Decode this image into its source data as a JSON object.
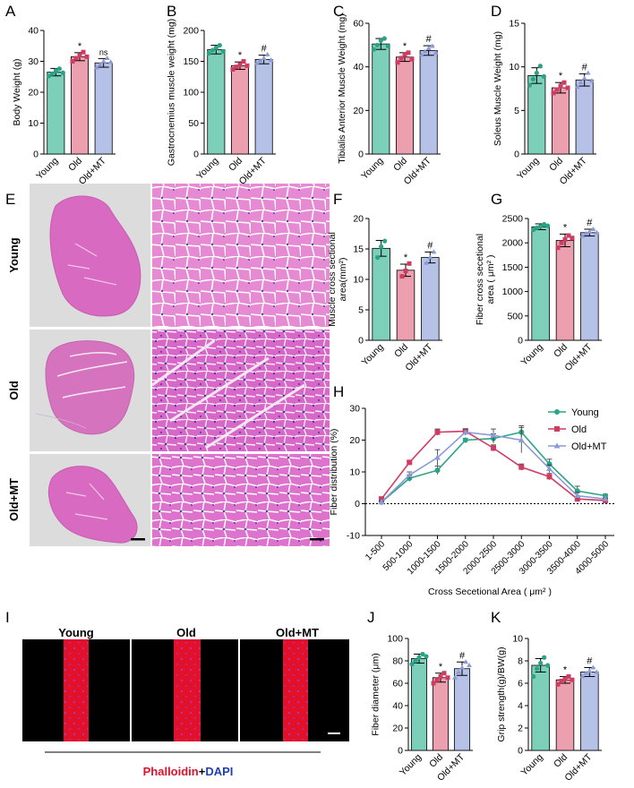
{
  "panels": {
    "A": "A",
    "B": "B",
    "C": "C",
    "D": "D",
    "E": "E",
    "F": "F",
    "G": "G",
    "H": "H",
    "I": "I",
    "J": "J",
    "K": "K"
  },
  "colors": {
    "young_fill": "#7ccfb9",
    "young_dot": "#2aa386",
    "old_fill": "#ec9fae",
    "old_dot": "#cf3b62",
    "mt_fill": "#b6c1e7",
    "mt_dot": "#8c9bd4",
    "he_stain": "#d869bd",
    "fiber_red": "#e3102c"
  },
  "groups": [
    "Young",
    "Old",
    "Old+MT"
  ],
  "histology": {
    "row_labels": [
      "Young",
      "Old",
      "Old+MT"
    ]
  },
  "fluorescence": {
    "labels": [
      "Young",
      "Old",
      "Old+MT"
    ],
    "stain_phalloidin": "Phalloidin",
    "stain_plus": "+",
    "stain_dapi": "DAPI"
  },
  "chart_data": [
    {
      "id": "A",
      "type": "bar",
      "ylabel": "Body Weight (g)",
      "categories": [
        "Young",
        "Old",
        "Old+MT"
      ],
      "values": [
        26.5,
        31.5,
        29.5
      ],
      "errors": [
        1.2,
        1.3,
        1.4
      ],
      "ylim": [
        0,
        40
      ],
      "yticks": [
        0,
        10,
        20,
        30,
        40
      ],
      "annotations": [
        "",
        "*",
        "ns"
      ],
      "points": [
        [
          25.2,
          26,
          27,
          27.6,
          26.3
        ],
        [
          30,
          31,
          32,
          33,
          31.5
        ],
        [
          28,
          29,
          30,
          31,
          29.8
        ]
      ]
    },
    {
      "id": "B",
      "type": "bar",
      "ylabel": "Gastrocnemius muscle weight (mg)",
      "categories": [
        "Young",
        "Old",
        "Old+MT"
      ],
      "values": [
        169,
        143,
        153
      ],
      "errors": [
        7,
        6,
        7
      ],
      "ylim": [
        0,
        200
      ],
      "yticks": [
        0,
        50,
        100,
        150,
        200
      ],
      "annotations": [
        "",
        "*",
        "#"
      ],
      "points": [
        [
          163,
          168,
          172,
          176,
          166
        ],
        [
          137,
          141,
          145,
          150,
          143
        ],
        [
          147,
          151,
          155,
          161,
          152
        ]
      ]
    },
    {
      "id": "C",
      "type": "bar",
      "ylabel": "Tibialis Anterior Muscle Weight (mg)",
      "categories": [
        "Young",
        "Old",
        "Old+MT"
      ],
      "values": [
        50.5,
        44.5,
        47.5
      ],
      "errors": [
        2.5,
        2.0,
        2.2
      ],
      "ylim": [
        0,
        60
      ],
      "yticks": [
        0,
        20,
        40,
        60
      ],
      "annotations": [
        "",
        "*",
        "#"
      ],
      "points": [
        [
          48,
          50,
          52,
          53,
          49.5
        ],
        [
          42,
          44,
          45.5,
          46.5,
          43.5
        ],
        [
          45.5,
          47,
          48.5,
          49.5,
          46.5
        ]
      ]
    },
    {
      "id": "D",
      "type": "bar",
      "ylabel": "Soleus Muscle Weight (mg)",
      "categories": [
        "Young",
        "Old",
        "Old+MT"
      ],
      "values": [
        9.0,
        7.6,
        8.5
      ],
      "errors": [
        0.9,
        0.6,
        0.7
      ],
      "ylim": [
        0,
        15
      ],
      "yticks": [
        0,
        5,
        10,
        15
      ],
      "annotations": [
        "",
        "*",
        "#"
      ],
      "points": [
        [
          7.9,
          8.6,
          9.3,
          10.1,
          8.9
        ],
        [
          7.0,
          7.4,
          7.8,
          8.2,
          7.6
        ],
        [
          7.7,
          8.2,
          8.7,
          9.3,
          8.4
        ]
      ]
    },
    {
      "id": "F",
      "type": "bar",
      "ylabel": "Muscle cross sectional area(mm²)",
      "ylabel_line1": "Muscle cross sectional",
      "ylabel_line2": "area(mm²)",
      "categories": [
        "Young",
        "Old",
        "Old+MT"
      ],
      "values": [
        15.1,
        11.5,
        13.6
      ],
      "errors": [
        1.3,
        1.0,
        0.9
      ],
      "ylim": [
        0,
        20
      ],
      "yticks": [
        0,
        5,
        10,
        15,
        20
      ],
      "annotations": [
        "",
        "*",
        "#"
      ],
      "points": [
        [
          13.6,
          15.4,
          16.3
        ],
        [
          10.5,
          11.4,
          12.6
        ],
        [
          12.7,
          13.6,
          14.5
        ]
      ]
    },
    {
      "id": "G",
      "type": "bar",
      "ylabel": "Fiber cross secetional area ( μm² )",
      "ylabel_line1": "Fiber cross secetional",
      "ylabel_line2": "area ( μm² )",
      "categories": [
        "Young",
        "Old",
        "Old+MT"
      ],
      "values": [
        2330,
        2050,
        2210
      ],
      "errors": [
        60,
        130,
        70
      ],
      "ylim": [
        0,
        2500
      ],
      "yticks": [
        0,
        500,
        1000,
        1500,
        2000,
        2500
      ],
      "annotations": [
        "",
        "*",
        "#"
      ],
      "points": [
        [
          2270,
          2310,
          2340,
          2380,
          2350
        ],
        [
          1900,
          2000,
          2070,
          2150,
          2100
        ],
        [
          2140,
          2190,
          2230,
          2280,
          2210
        ]
      ]
    },
    {
      "id": "H",
      "type": "line",
      "ylabel": "Fiber distribution    (%)",
      "xlabel": "Cross Secetional Area ( μm² )",
      "categories": [
        "1-500",
        "500-1000",
        "1000-1500",
        "1500-2000",
        "2000-2500",
        "2500-3000",
        "3000-3500",
        "3500-4000",
        "4000-5000"
      ],
      "ylim": [
        -10,
        30
      ],
      "yticks": [
        -10,
        0,
        10,
        20,
        30
      ],
      "series": [
        {
          "name": "Young",
          "values": [
            0.5,
            8,
            10.5,
            20,
            20.5,
            22.5,
            12.5,
            4,
            2.5
          ],
          "errors": [
            0.5,
            1,
            1.3,
            0.5,
            1.5,
            2,
            1.5,
            1.5,
            0.5
          ]
        },
        {
          "name": "Old",
          "values": [
            1.5,
            13,
            22.5,
            22.8,
            17.5,
            11.5,
            8.5,
            1.5,
            1.0
          ],
          "errors": [
            0.5,
            0.5,
            1,
            0.8,
            1,
            1,
            1,
            0.5,
            0.3
          ]
        },
        {
          "name": "Old+MT",
          "values": [
            0.5,
            9,
            14.5,
            22.5,
            21.5,
            20,
            11,
            2.5,
            1.5
          ],
          "errors": [
            0.3,
            1,
            2.5,
            1,
            2,
            4,
            1.2,
            1,
            0.3
          ]
        }
      ]
    },
    {
      "id": "J",
      "type": "bar",
      "ylabel": "Fiber diameter (μm)",
      "categories": [
        "Young",
        "Old",
        "Old+MT"
      ],
      "values": [
        82,
        65,
        73
      ],
      "errors": [
        4,
        4,
        6
      ],
      "ylim": [
        0,
        100
      ],
      "yticks": [
        0,
        20,
        40,
        60,
        80,
        100
      ],
      "annotations": [
        "",
        "*",
        "#"
      ],
      "points": [
        [
          77,
          80,
          83,
          86,
          84
        ],
        [
          60,
          63,
          66,
          69,
          65
        ],
        [
          65,
          70,
          74,
          79,
          76
        ]
      ]
    },
    {
      "id": "K",
      "type": "bar",
      "ylabel": "Grip strength(g)/BW(g)",
      "categories": [
        "Young",
        "Old",
        "Old+MT"
      ],
      "values": [
        7.6,
        6.3,
        7.0
      ],
      "errors": [
        0.6,
        0.3,
        0.4
      ],
      "ylim": [
        0,
        10
      ],
      "yticks": [
        0,
        2,
        4,
        6,
        8,
        10
      ],
      "annotations": [
        "",
        "*",
        "#"
      ],
      "points": [
        [
          6.6,
          7.3,
          7.8,
          8.3,
          7.6
        ],
        [
          5.9,
          6.2,
          6.4,
          6.6,
          6.3
        ],
        [
          6.6,
          6.9,
          7.1,
          7.4,
          7.0
        ]
      ]
    }
  ]
}
